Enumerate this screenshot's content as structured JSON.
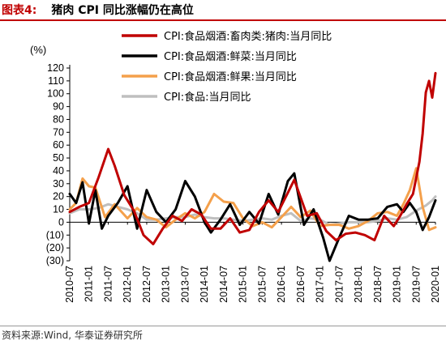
{
  "header": {
    "figure_label": "图表4:",
    "title": "猪肉 CPI 同比涨幅仍在高位"
  },
  "source": "资料来源:Wind, 华泰证券研究所",
  "chart_data": {
    "type": "line",
    "title": "猪肉 CPI 同比涨幅仍在高位",
    "ylabel": "(%)",
    "xlabel": "",
    "ylim": [
      -30,
      120
    ],
    "yticks": [
      -30,
      -20,
      -10,
      0,
      10,
      20,
      30,
      40,
      50,
      60,
      70,
      80,
      90,
      100,
      110,
      120
    ],
    "ytick_labels": [
      "(30)",
      "(20)",
      "(10)",
      "0",
      "10",
      "20",
      "30",
      "40",
      "50",
      "60",
      "70",
      "80",
      "90",
      "100",
      "110",
      "120"
    ],
    "xlim": [
      "2010-07",
      "2020-01"
    ],
    "xtick_labels": [
      "2010-07",
      "2011-01",
      "2011-07",
      "2012-01",
      "2012-07",
      "2013-01",
      "2013-07",
      "2014-01",
      "2014-07",
      "2015-01",
      "2015-07",
      "2016-01",
      "2016-07",
      "2017-01",
      "2017-07",
      "2018-01",
      "2018-07",
      "2019-01",
      "2019-07",
      "2020-01"
    ],
    "legend_position": "top-right",
    "series": [
      {
        "name": "CPI:食品烟酒:畜肉类:猪肉:当月同比",
        "color": "#c00000",
        "points": [
          [
            "2010-07",
            8
          ],
          [
            "2010-10",
            12
          ],
          [
            "2011-01",
            15
          ],
          [
            "2011-04",
            35
          ],
          [
            "2011-07",
            57
          ],
          [
            "2011-09",
            44
          ],
          [
            "2011-12",
            21
          ],
          [
            "2012-03",
            9
          ],
          [
            "2012-06",
            -10
          ],
          [
            "2012-09",
            -17
          ],
          [
            "2012-12",
            -5
          ],
          [
            "2013-03",
            5
          ],
          [
            "2013-06",
            1
          ],
          [
            "2013-09",
            10
          ],
          [
            "2013-12",
            6
          ],
          [
            "2014-03",
            -5
          ],
          [
            "2014-06",
            -5
          ],
          [
            "2014-09",
            3
          ],
          [
            "2014-12",
            -8
          ],
          [
            "2015-03",
            -6
          ],
          [
            "2015-06",
            8
          ],
          [
            "2015-09",
            17
          ],
          [
            "2015-12",
            8
          ],
          [
            "2016-03",
            23
          ],
          [
            "2016-05",
            33
          ],
          [
            "2016-09",
            5
          ],
          [
            "2016-12",
            7
          ],
          [
            "2017-03",
            -7
          ],
          [
            "2017-06",
            -14
          ],
          [
            "2017-09",
            -9
          ],
          [
            "2017-12",
            -8
          ],
          [
            "2018-03",
            -10
          ],
          [
            "2018-06",
            -14
          ],
          [
            "2018-09",
            5
          ],
          [
            "2018-12",
            -3
          ],
          [
            "2019-02",
            5
          ],
          [
            "2019-04",
            14
          ],
          [
            "2019-06",
            22
          ],
          [
            "2019-08",
            47
          ],
          [
            "2019-09",
            69
          ],
          [
            "2019-10",
            101
          ],
          [
            "2019-11",
            110
          ],
          [
            "2019-12",
            97
          ],
          [
            "2020-01",
            116
          ]
        ]
      },
      {
        "name": "CPI:食品烟酒:鲜菜:当月同比",
        "color": "#000000",
        "points": [
          [
            "2010-07",
            22
          ],
          [
            "2010-09",
            15
          ],
          [
            "2010-11",
            31
          ],
          [
            "2011-01",
            -1
          ],
          [
            "2011-03",
            25
          ],
          [
            "2011-05",
            -5
          ],
          [
            "2011-07",
            5
          ],
          [
            "2011-10",
            15
          ],
          [
            "2012-01",
            28
          ],
          [
            "2012-04",
            -5
          ],
          [
            "2012-07",
            25
          ],
          [
            "2012-10",
            8
          ],
          [
            "2013-01",
            0
          ],
          [
            "2013-04",
            10
          ],
          [
            "2013-07",
            32
          ],
          [
            "2013-10",
            20
          ],
          [
            "2014-01",
            0
          ],
          [
            "2014-03",
            -8
          ],
          [
            "2014-06",
            2
          ],
          [
            "2014-09",
            14
          ],
          [
            "2014-12",
            -2
          ],
          [
            "2015-03",
            8
          ],
          [
            "2015-06",
            -1
          ],
          [
            "2015-09",
            22
          ],
          [
            "2015-12",
            6
          ],
          [
            "2016-03",
            32
          ],
          [
            "2016-05",
            38
          ],
          [
            "2016-08",
            -2
          ],
          [
            "2016-11",
            10
          ],
          [
            "2017-02",
            -12
          ],
          [
            "2017-04",
            -30
          ],
          [
            "2017-07",
            -12
          ],
          [
            "2017-10",
            5
          ],
          [
            "2018-01",
            2
          ],
          [
            "2018-04",
            2
          ],
          [
            "2018-07",
            3
          ],
          [
            "2018-10",
            12
          ],
          [
            "2019-01",
            14
          ],
          [
            "2019-03",
            8
          ],
          [
            "2019-05",
            15
          ],
          [
            "2019-07",
            8
          ],
          [
            "2019-09",
            -6
          ],
          [
            "2019-11",
            4
          ],
          [
            "2020-01",
            17
          ]
        ]
      },
      {
        "name": "CPI:食品烟酒:鲜果:当月同比",
        "color": "#f4a04b",
        "points": [
          [
            "2010-07",
            10
          ],
          [
            "2010-09",
            15
          ],
          [
            "2010-11",
            34
          ],
          [
            "2011-01",
            28
          ],
          [
            "2011-03",
            27
          ],
          [
            "2011-06",
            4
          ],
          [
            "2011-09",
            14
          ],
          [
            "2012-01",
            3
          ],
          [
            "2012-04",
            11
          ],
          [
            "2012-07",
            4
          ],
          [
            "2012-10",
            2
          ],
          [
            "2013-01",
            -4
          ],
          [
            "2013-04",
            2
          ],
          [
            "2013-07",
            7
          ],
          [
            "2013-10",
            3
          ],
          [
            "2014-01",
            8
          ],
          [
            "2014-04",
            22
          ],
          [
            "2014-07",
            16
          ],
          [
            "2014-10",
            15
          ],
          [
            "2015-01",
            3
          ],
          [
            "2015-04",
            -3
          ],
          [
            "2015-07",
            0
          ],
          [
            "2015-10",
            -4
          ],
          [
            "2016-01",
            4
          ],
          [
            "2016-04",
            12
          ],
          [
            "2016-07",
            4
          ],
          [
            "2016-10",
            9
          ],
          [
            "2017-01",
            -3
          ],
          [
            "2017-04",
            -2
          ],
          [
            "2017-07",
            -2
          ],
          [
            "2017-10",
            -5
          ],
          [
            "2018-01",
            -3
          ],
          [
            "2018-04",
            1
          ],
          [
            "2018-07",
            7
          ],
          [
            "2018-10",
            8
          ],
          [
            "2019-01",
            5
          ],
          [
            "2019-03",
            14
          ],
          [
            "2019-05",
            25
          ],
          [
            "2019-07",
            42
          ],
          [
            "2019-09",
            12
          ],
          [
            "2019-11",
            -6
          ],
          [
            "2020-01",
            -4
          ]
        ]
      },
      {
        "name": "CPI:食品:当月同比",
        "color": "#bfbfbf",
        "points": [
          [
            "2010-07",
            7
          ],
          [
            "2010-10",
            10
          ],
          [
            "2011-01",
            10
          ],
          [
            "2011-04",
            11
          ],
          [
            "2011-07",
            14
          ],
          [
            "2011-10",
            12
          ],
          [
            "2012-01",
            10
          ],
          [
            "2012-04",
            7
          ],
          [
            "2012-07",
            2
          ],
          [
            "2012-10",
            2
          ],
          [
            "2013-01",
            3
          ],
          [
            "2013-04",
            4
          ],
          [
            "2013-07",
            4
          ],
          [
            "2013-10",
            6
          ],
          [
            "2014-01",
            4
          ],
          [
            "2014-04",
            3
          ],
          [
            "2014-07",
            3
          ],
          [
            "2014-10",
            2
          ],
          [
            "2015-01",
            1
          ],
          [
            "2015-04",
            2
          ],
          [
            "2015-07",
            3
          ],
          [
            "2015-10",
            2
          ],
          [
            "2016-01",
            5
          ],
          [
            "2016-04",
            7
          ],
          [
            "2016-07",
            1
          ],
          [
            "2016-10",
            3
          ],
          [
            "2017-01",
            2
          ],
          [
            "2017-04",
            -2
          ],
          [
            "2017-07",
            -1
          ],
          [
            "2017-10",
            0
          ],
          [
            "2018-01",
            0
          ],
          [
            "2018-04",
            0
          ],
          [
            "2018-07",
            1
          ],
          [
            "2018-10",
            3
          ],
          [
            "2019-01",
            2
          ],
          [
            "2019-04",
            4
          ],
          [
            "2019-07",
            9
          ],
          [
            "2019-10",
            13
          ],
          [
            "2019-12",
            17
          ],
          [
            "2020-01",
            20
          ]
        ]
      }
    ]
  }
}
